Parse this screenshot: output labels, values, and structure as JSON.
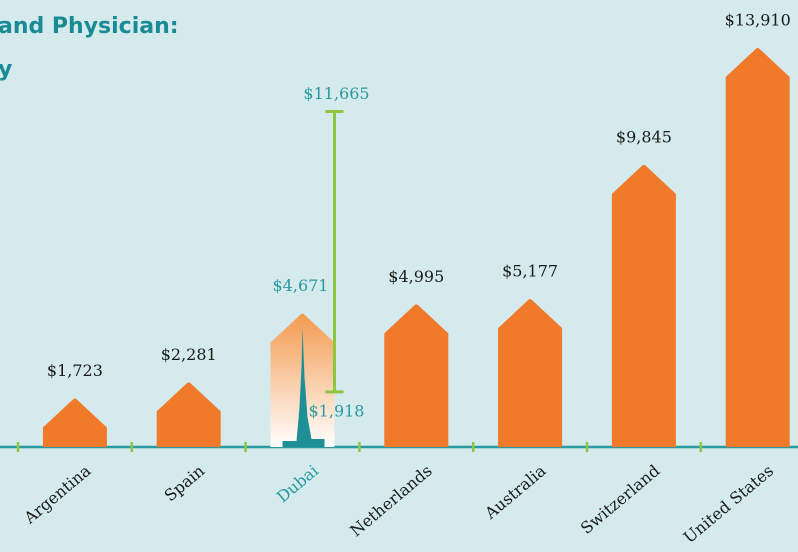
{
  "chart_data": {
    "type": "bar",
    "title_lines": [
      "and Physician:",
      "y"
    ],
    "categories": [
      "Argentina",
      "Spain",
      "Dubai",
      "Netherlands",
      "Australia",
      "Switzerland",
      "United States"
    ],
    "values": [
      1723,
      2281,
      4671,
      4995,
      5177,
      9845,
      13910
    ],
    "value_labels": [
      "$1,723",
      "$2,281",
      "$4,671",
      "$4,995",
      "$5,177",
      "$9,845",
      "$13,910"
    ],
    "colors": [
      "#f07a2a",
      "#f07a2a",
      "#f39a50",
      "#f07a2a",
      "#f07a2a",
      "#f07a2a",
      "#f07a2a"
    ],
    "label_colors": [
      "#1a1a1a",
      "#1a1a1a",
      "#2a9aa0",
      "#1a1a1a",
      "#1a1a1a",
      "#1a1a1a",
      "#1a1a1a"
    ],
    "range": {
      "category": "Dubai",
      "values": [
        1918,
        11665
      ],
      "value_labels": [
        "$1,918",
        "$11,665"
      ],
      "color": "#8dc63f"
    }
  }
}
